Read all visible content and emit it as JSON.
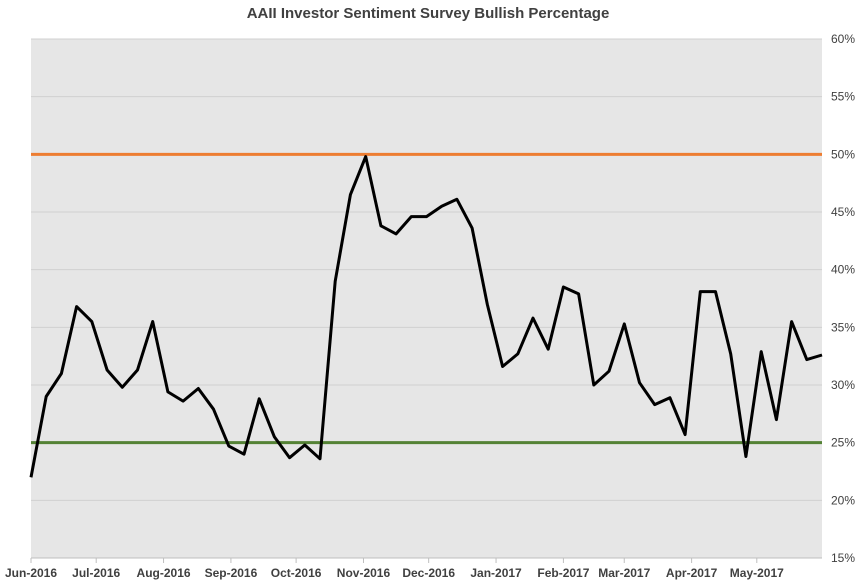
{
  "chart_data": {
    "type": "line",
    "title": "AAII Investor Sentiment Survey Bullish Percentage",
    "xlabel": "",
    "ylabel": "",
    "ylim": [
      15,
      60
    ],
    "yticks": [
      "15%",
      "20%",
      "25%",
      "30%",
      "35%",
      "40%",
      "45%",
      "50%",
      "55%",
      "60%"
    ],
    "xtick_labels": [
      "Jun-2016",
      "Jul-2016",
      "Aug-2016",
      "Sep-2016",
      "Oct-2016",
      "Nov-2016",
      "Dec-2016",
      "Jan-2017",
      "Feb-2017",
      "Mar-2017",
      "Apr-2017",
      "May-2017"
    ],
    "xlim": [
      "2016-06-01",
      "2017-05-31"
    ],
    "grid": true,
    "legend": "none",
    "colors": {
      "plot_background": "#e6e6e6",
      "line": "#000000",
      "upper_threshold": "#ed7d31",
      "lower_threshold": "#548235",
      "grid": "#d0d0d0"
    },
    "reference_lines": [
      {
        "value": 50,
        "color": "#ed7d31"
      },
      {
        "value": 25,
        "color": "#548235"
      }
    ],
    "series": [
      {
        "x": [
          "2016-06-01",
          "2016-06-08",
          "2016-06-15",
          "2016-06-22",
          "2016-06-29",
          "2016-07-06",
          "2016-07-13",
          "2016-07-20",
          "2016-07-27",
          "2016-08-03",
          "2016-08-10",
          "2016-08-17",
          "2016-08-24",
          "2016-08-31",
          "2016-09-07",
          "2016-09-14",
          "2016-09-21",
          "2016-09-28",
          "2016-10-05",
          "2016-10-12",
          "2016-10-19",
          "2016-10-26",
          "2016-11-02",
          "2016-11-09",
          "2016-11-16",
          "2016-11-23",
          "2016-11-30",
          "2016-12-07",
          "2016-12-14",
          "2016-12-21",
          "2016-12-28",
          "2017-01-04",
          "2017-01-11",
          "2017-01-18",
          "2017-01-25",
          "2017-02-01",
          "2017-02-08",
          "2017-02-15",
          "2017-02-22",
          "2017-03-01",
          "2017-03-08",
          "2017-03-15",
          "2017-03-22",
          "2017-03-29",
          "2017-04-05",
          "2017-04-12",
          "2017-04-19",
          "2017-04-26",
          "2017-05-03",
          "2017-05-10",
          "2017-05-17",
          "2017-05-24",
          "2017-05-31"
        ],
        "values": [
          22.0,
          29.0,
          31.0,
          36.8,
          35.5,
          31.3,
          29.8,
          31.3,
          35.5,
          29.4,
          28.6,
          29.7,
          27.9,
          24.7,
          24.0,
          28.8,
          25.5,
          23.7,
          24.8,
          23.6,
          39.0,
          46.5,
          49.8,
          43.8,
          43.1,
          44.6,
          44.6,
          45.5,
          46.1,
          43.6,
          37.0,
          31.6,
          32.7,
          35.8,
          33.1,
          38.5,
          37.9,
          30.0,
          31.2,
          35.3,
          30.2,
          28.3,
          28.9,
          25.7,
          38.1,
          38.1,
          32.7,
          23.8,
          32.9,
          27.0,
          35.5,
          32.2,
          32.6
        ]
      }
    ]
  }
}
